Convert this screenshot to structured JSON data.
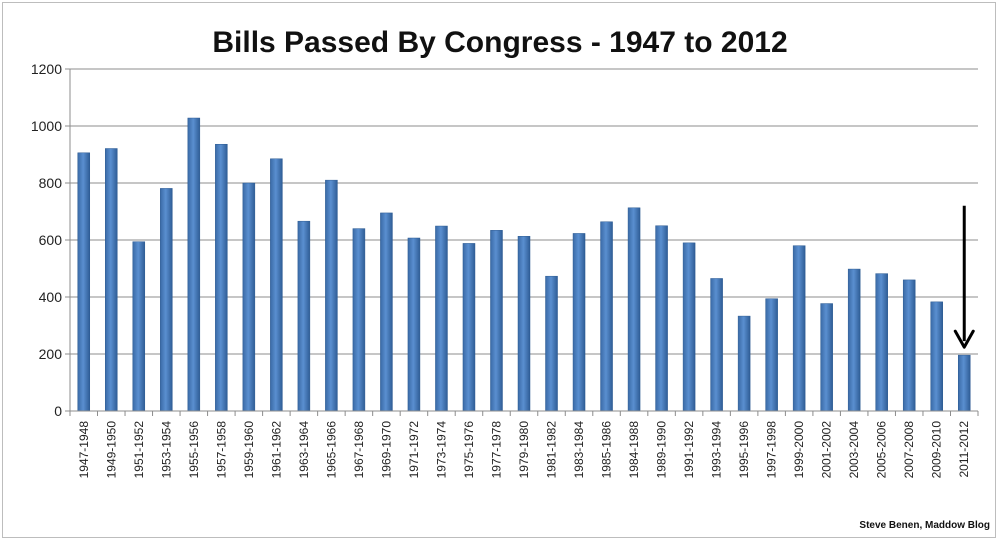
{
  "chart_data": {
    "type": "bar",
    "title": "Bills Passed By Congress - 1947 to 2012",
    "xlabel": "",
    "ylabel": "",
    "ylim": [
      0,
      1200
    ],
    "yticks": [
      0,
      200,
      400,
      600,
      800,
      1000,
      1200
    ],
    "grid": true,
    "legend": "none",
    "categories": [
      "1947-1948",
      "1949-1950",
      "1951-1952",
      "1953-1954",
      "1955-1956",
      "1957-1958",
      "1959-1960",
      "1961-1962",
      "1963-1964",
      "1965-1966",
      "1967-1968",
      "1969-1970",
      "1971-1972",
      "1973-1974",
      "1975-1976",
      "1977-1978",
      "1979-1980",
      "1981-1982",
      "1983-1984",
      "1985-1986",
      "1984-1988",
      "1989-1990",
      "1991-1992",
      "1993-1994",
      "1995-1996",
      "1997-1998",
      "1999-2000",
      "2001-2002",
      "2003-2004",
      "2005-2006",
      "2007-2008",
      "2009-2010",
      "2011-2012"
    ],
    "values": [
      906,
      921,
      594,
      781,
      1028,
      936,
      800,
      885,
      666,
      810,
      640,
      695,
      607,
      649,
      588,
      634,
      613,
      473,
      623,
      664,
      713,
      650,
      590,
      465,
      333,
      394,
      580,
      377,
      498,
      482,
      460,
      383,
      196
    ],
    "bar_color": "#4f81bd",
    "annotation": {
      "type": "arrow",
      "points_to_category": "2011-2012",
      "color": "#000000"
    },
    "credit": "Steve Benen, Maddow Blog"
  }
}
